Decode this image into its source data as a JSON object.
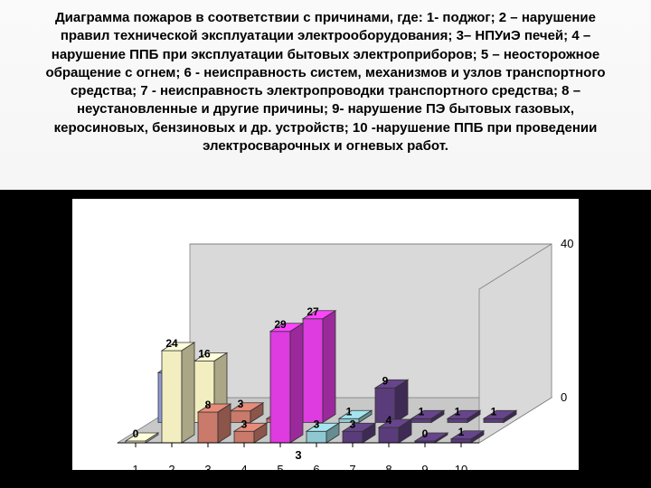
{
  "title": "Диаграмма пожаров в соответствии с причинами, где:\n1- поджог; 2 – нарушение правил технической эксплуатации электрооборудования; 3– НПУиЭ печей; 4 – нарушение ППБ при эксплуатации бытовых электроприборов; 5 – неосторожное обращение с огнем; 6 - неисправность систем, механизмов и узлов транспортного средства; 7 - неисправность электропроводки транспортного средства; 8 – неустановленные и другие причины; 9- нарушение ПЭ бытовых газовых, керосиновых, бензиновых и др. устройств; 10 -нарушение ППБ при проведении электросварочных и огневых работ.",
  "chart": {
    "type": "3d-bar",
    "background_color": "#ffffff",
    "floor_color": "#c8c8c8",
    "wall_color": "#d9d9d9",
    "grid_color": "#808080",
    "outer_bg": "#000000",
    "x_categories": [
      "1",
      "2",
      "3",
      "4",
      "5",
      "6",
      "7",
      "8",
      "9",
      "10"
    ],
    "y_axis": {
      "min": 0,
      "max": 40,
      "ticks": [
        0,
        40
      ]
    },
    "series": [
      {
        "name": "front",
        "floor_label": "3",
        "colors": [
          "#f3eec0",
          "#f3eec0",
          "#c97a6a",
          "#c97a6a",
          "#de3be0",
          "#8fc8d0",
          "#5a3c7a",
          "#5a3c7a",
          "#5a3c7a",
          "#5a3c7a"
        ],
        "values": [
          0,
          24,
          8,
          3,
          29,
          3,
          3,
          4,
          0,
          1
        ],
        "value_labels": [
          "0",
          "24",
          "8",
          "3",
          "29",
          "3",
          "3",
          "4",
          "0",
          "1"
        ]
      },
      {
        "name": "back",
        "floor_label": "",
        "colors": [
          "#8f9ad8",
          "#f3eec0",
          "#c97a6a",
          "#c97a6a",
          "#de3be0",
          "#8fc8d0",
          "#5a3c7a",
          "#5a3c7a",
          "#5a3c7a",
          "#5a3c7a"
        ],
        "values": [
          13,
          16,
          3,
          1,
          27,
          1,
          9,
          1,
          1,
          1
        ],
        "value_labels": [
          "13",
          "16",
          "3",
          "1",
          "27",
          "1",
          "9",
          "1",
          "1",
          "1"
        ]
      }
    ],
    "text_color": "#000000",
    "font_size": 13
  }
}
